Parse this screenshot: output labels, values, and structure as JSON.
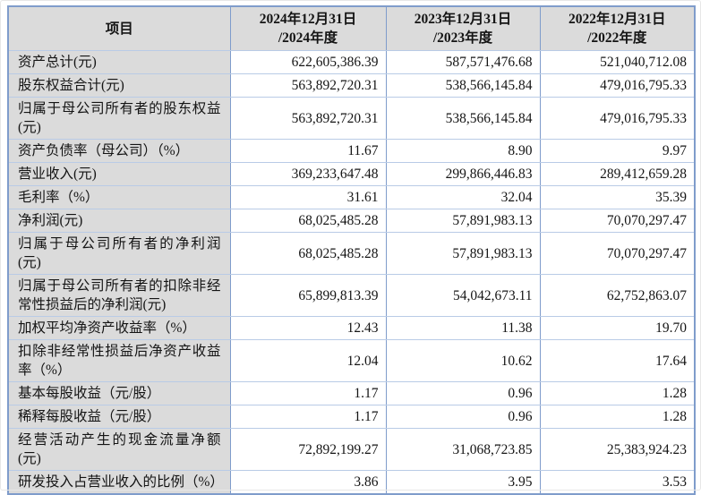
{
  "table": {
    "columns": {
      "item_label": "项目",
      "y2024": {
        "line1": "2024年12月31日",
        "line2": "/2024年度"
      },
      "y2023": {
        "line1": "2023年12月31日",
        "line2": "/2023年度"
      },
      "y2022": {
        "line1": "2022年12月31日",
        "line2": "/2022年度"
      }
    },
    "rows": [
      {
        "label": "资产总计(元)",
        "y2024": "622,605,386.39",
        "y2023": "587,571,476.68",
        "y2022": "521,040,712.08"
      },
      {
        "label": "股东权益合计(元)",
        "y2024": "563,892,720.31",
        "y2023": "538,566,145.84",
        "y2022": "479,016,795.33"
      },
      {
        "label": "归属于母公司所有者的股东权益(元)",
        "y2024": "563,892,720.31",
        "y2023": "538,566,145.84",
        "y2022": "479,016,795.33"
      },
      {
        "label": "资产负债率（母公司）（%）",
        "y2024": "11.67",
        "y2023": "8.90",
        "y2022": "9.97"
      },
      {
        "label": "营业收入(元)",
        "y2024": "369,233,647.48",
        "y2023": "299,866,446.83",
        "y2022": "289,412,659.28"
      },
      {
        "label": "毛利率（%）",
        "y2024": "31.61",
        "y2023": "32.04",
        "y2022": "35.39"
      },
      {
        "label": "净利润(元)",
        "y2024": "68,025,485.28",
        "y2023": "57,891,983.13",
        "y2022": "70,070,297.47"
      },
      {
        "label": "归属于母公司所有者的净利润(元)",
        "y2024": "68,025,485.28",
        "y2023": "57,891,983.13",
        "y2022": "70,070,297.47"
      },
      {
        "label": "归属于母公司所有者的扣除非经常性损益后的净利润(元)",
        "y2024": "65,899,813.39",
        "y2023": "54,042,673.11",
        "y2022": "62,752,863.07"
      },
      {
        "label": "加权平均净资产收益率（%）",
        "y2024": "12.43",
        "y2023": "11.38",
        "y2022": "19.70"
      },
      {
        "label": "扣除非经常性损益后净资产收益率（%）",
        "y2024": "12.04",
        "y2023": "10.62",
        "y2022": "17.64"
      },
      {
        "label": "基本每股收益（元/股）",
        "y2024": "1.17",
        "y2023": "0.96",
        "y2022": "1.28"
      },
      {
        "label": "稀释每股收益（元/股）",
        "y2024": "1.17",
        "y2023": "0.96",
        "y2022": "1.28"
      },
      {
        "label": "经营活动产生的现金流量净额(元)",
        "y2024": "72,892,199.27",
        "y2023": "31,068,723.85",
        "y2022": "25,383,924.23"
      },
      {
        "label": "研发投入占营业收入的比例（%）",
        "y2024": "3.86",
        "y2023": "3.95",
        "y2022": "3.53"
      }
    ],
    "colors": {
      "header_bg": "#dbdbdb",
      "border_vertical": "#7f9ccb",
      "border_horizontal": "#b9cbe6"
    }
  }
}
